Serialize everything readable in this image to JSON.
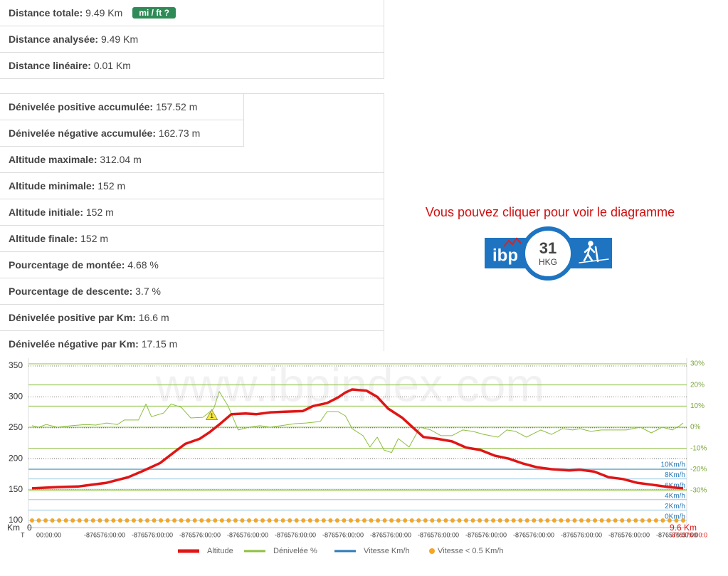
{
  "distance_table": {
    "rows": [
      {
        "label": "Distance totale:",
        "value": "9.49 Km"
      },
      {
        "label": "Distance analysée:",
        "value": "9.49 Km"
      },
      {
        "label": "Distance linéaire:",
        "value": "0.01 Km"
      }
    ],
    "units_button": "mi / ft ?"
  },
  "elevation_table": {
    "rows": [
      {
        "label": "Dénivelée positive accumulée:",
        "value": "157.52 m"
      },
      {
        "label": "Dénivelée négative accumulée:",
        "value": "162.73 m"
      },
      {
        "label": "Altitude maximale:",
        "value": "312.04 m"
      },
      {
        "label": "Altitude minimale:",
        "value": "152 m"
      },
      {
        "label": "Altitude initiale:",
        "value": "152 m"
      },
      {
        "label": "Altitude finale:",
        "value": "152 m"
      },
      {
        "label": "Pourcentage de montée:",
        "value": "4.68 %"
      },
      {
        "label": "Pourcentage de descente:",
        "value": "3.7 %"
      },
      {
        "label": "Dénivelée positive par Km:",
        "value": "16.6 m"
      },
      {
        "label": "Dénivelée négative par Km:",
        "value": "17.15 m"
      }
    ]
  },
  "promo": {
    "message": "Vous pouvez cliquer pour voir le diagramme",
    "badge_brand": "ibp",
    "badge_score": "31",
    "badge_code": "HKG"
  },
  "chart_data": {
    "type": "line",
    "watermark": "www.ibpindex.com",
    "x_label": "Km",
    "time_label": "T",
    "xlim": [
      0,
      9.6
    ],
    "xticks": [
      0,
      {
        "value": 9.6,
        "label": "9.6 Km"
      }
    ],
    "time_ticks": [
      "00:00:00",
      "-876576:00:00",
      "-876576:00:00",
      "-876576:00:00",
      "-876576:00:00",
      "-876576:00:00",
      "-876576:00:00",
      "-876576:00:00",
      "-876576:00:00",
      "-876576:00:00",
      "-876576:00:00",
      "-876576:00:00",
      "-876576:00:00",
      "-876576:00:00"
    ],
    "time_end": "-876576:00:0",
    "ylim": [
      100,
      350
    ],
    "yticks": [
      100,
      150,
      200,
      250,
      300,
      350
    ],
    "y2lim": [
      -44.15,
      28.99
    ],
    "y2ticks": [
      {
        "value": 30,
        "label": "30%"
      },
      {
        "value": 20,
        "label": "20%"
      },
      {
        "value": 10,
        "label": "10%"
      },
      {
        "value": 0,
        "label": "0%"
      },
      {
        "value": -10,
        "label": "-10%"
      },
      {
        "value": -20,
        "label": "-20%"
      },
      {
        "value": -30,
        "label": "-30%"
      }
    ],
    "speed_lim": [
      0,
      29.73
    ],
    "speed_ticks": [
      {
        "value": 10,
        "label": "10Km/h"
      },
      {
        "value": 8,
        "label": "8Km/h"
      },
      {
        "value": 6,
        "label": "6Km/h"
      },
      {
        "value": 4,
        "label": "4Km/h"
      },
      {
        "value": 2,
        "label": "2Km/h"
      },
      {
        "value": 0,
        "label": "0Km/h"
      }
    ],
    "annotations": [
      {
        "label": "1",
        "x": 2.65,
        "y": 270
      }
    ],
    "series": [
      {
        "name": "Altitude",
        "color": "#e01515",
        "x": [
          0,
          0.37,
          0.68,
          1.1,
          1.42,
          1.63,
          1.89,
          2.1,
          2.26,
          2.47,
          2.62,
          2.78,
          2.94,
          3.15,
          3.31,
          3.52,
          3.73,
          3.99,
          4.14,
          4.35,
          4.51,
          4.62,
          4.72,
          4.93,
          5.09,
          5.25,
          5.46,
          5.61,
          5.77,
          5.98,
          6.19,
          6.4,
          6.61,
          6.82,
          7.03,
          7.24,
          7.45,
          7.66,
          7.92,
          8.08,
          8.29,
          8.5,
          8.71,
          8.92,
          9.13,
          9.39,
          9.6
        ],
        "values": [
          152,
          154,
          155,
          161,
          170,
          180,
          193,
          211,
          224,
          232,
          243,
          257,
          272,
          273,
          272,
          275,
          276,
          277,
          285,
          290,
          299,
          307,
          312,
          310,
          300,
          281,
          266,
          251,
          235,
          232,
          228,
          218,
          214,
          205,
          200,
          192,
          186,
          183,
          181,
          182,
          179,
          170,
          167,
          161,
          158,
          154,
          152
        ]
      },
      {
        "name": "Dénivelée %",
        "color": "#8cbf3f",
        "axis": "y2",
        "x": [
          0,
          0.1,
          0.21,
          0.37,
          0.58,
          0.79,
          0.94,
          1.1,
          1.26,
          1.36,
          1.57,
          1.68,
          1.76,
          1.94,
          2.05,
          2.2,
          2.34,
          2.52,
          2.68,
          2.76,
          2.89,
          3.04,
          3.2,
          3.36,
          3.51,
          3.67,
          3.88,
          4.04,
          4.25,
          4.35,
          4.51,
          4.62,
          4.72,
          4.88,
          4.98,
          5.09,
          5.19,
          5.3,
          5.4,
          5.56,
          5.72,
          5.88,
          6.03,
          6.19,
          6.35,
          6.5,
          6.66,
          6.87,
          7.0,
          7.13,
          7.29,
          7.5,
          7.66,
          7.82,
          7.97,
          8.08,
          8.24,
          8.39,
          8.55,
          8.76,
          8.97,
          9.13,
          9.29,
          9.44,
          9.55,
          9.6
        ],
        "values": [
          0.7,
          0,
          1.3,
          0,
          0.7,
          1.3,
          1,
          2,
          1.3,
          3.4,
          3.4,
          11,
          5,
          6.7,
          11,
          9.4,
          4.4,
          4.7,
          8.8,
          16.9,
          10,
          -1.3,
          0,
          0.7,
          0,
          0.7,
          1.7,
          2,
          2.7,
          7.4,
          7.4,
          5.4,
          -0.7,
          -4,
          -9.4,
          -4.7,
          -10.8,
          -12,
          -5.4,
          -9.4,
          0,
          -1.3,
          -4,
          -4,
          -1.3,
          -2,
          -3.4,
          -4.7,
          -1.3,
          -2,
          -4.7,
          -1.3,
          -3.4,
          -0.7,
          -1.3,
          -0.7,
          -2,
          -1.3,
          -1.3,
          -1.3,
          0,
          -2.7,
          0,
          -1.3,
          0.7,
          2
        ]
      },
      {
        "name": "Vitesse Km/h",
        "color": "#2b7bb9",
        "axis": "speed"
      },
      {
        "name": "Vitesse < 0.5 Km/h",
        "color": "#f5a623",
        "axis": "speed",
        "marker": "dot",
        "x": [
          0,
          0.1,
          0.2,
          0.3,
          0.4,
          0.5,
          0.6,
          0.7,
          0.8,
          0.9,
          1,
          1.1,
          1.2,
          1.3,
          1.4,
          1.5,
          1.6,
          1.7,
          1.8,
          1.9,
          2,
          2.1,
          2.2,
          2.3,
          2.4,
          2.5,
          2.6,
          2.7,
          2.8,
          2.9,
          3,
          3.1,
          3.2,
          3.3,
          3.4,
          3.5,
          3.6,
          3.7,
          3.8,
          3.9,
          4,
          4.1,
          4.2,
          4.3,
          4.4,
          4.5,
          4.6,
          4.7,
          4.8,
          4.9,
          5,
          5.1,
          5.2,
          5.3,
          5.4,
          5.5,
          5.6,
          5.7,
          5.8,
          5.9,
          6,
          6.1,
          6.2,
          6.3,
          6.4,
          6.5,
          6.6,
          6.7,
          6.8,
          6.9,
          7,
          7.1,
          7.2,
          7.3,
          7.4,
          7.5,
          7.6,
          7.7,
          7.8,
          7.9,
          8,
          8.1,
          8.2,
          8.3,
          8.4,
          8.5,
          8.6,
          8.7,
          8.8,
          8.9,
          9,
          9.1,
          9.2,
          9.3,
          9.4,
          9.5,
          9.6
        ],
        "values": [
          0,
          0,
          0,
          0,
          0,
          0,
          0,
          0,
          0,
          0,
          0,
          0,
          0,
          0,
          0,
          0,
          0,
          0,
          0,
          0,
          0,
          0,
          0,
          0,
          0,
          0,
          0,
          0,
          0,
          0,
          0,
          0,
          0,
          0,
          0,
          0,
          0,
          0,
          0,
          0,
          0,
          0,
          0,
          0,
          0,
          0,
          0,
          0,
          0,
          0,
          0,
          0,
          0,
          0,
          0,
          0,
          0,
          0,
          0,
          0,
          0,
          0,
          0,
          0,
          0,
          0,
          0,
          0,
          0,
          0,
          0,
          0,
          0,
          0,
          0,
          0,
          0,
          0,
          0,
          0,
          0,
          0,
          0,
          0,
          0,
          0,
          0,
          0,
          0,
          0,
          0,
          0,
          0,
          0,
          0,
          0,
          0
        ]
      }
    ]
  }
}
